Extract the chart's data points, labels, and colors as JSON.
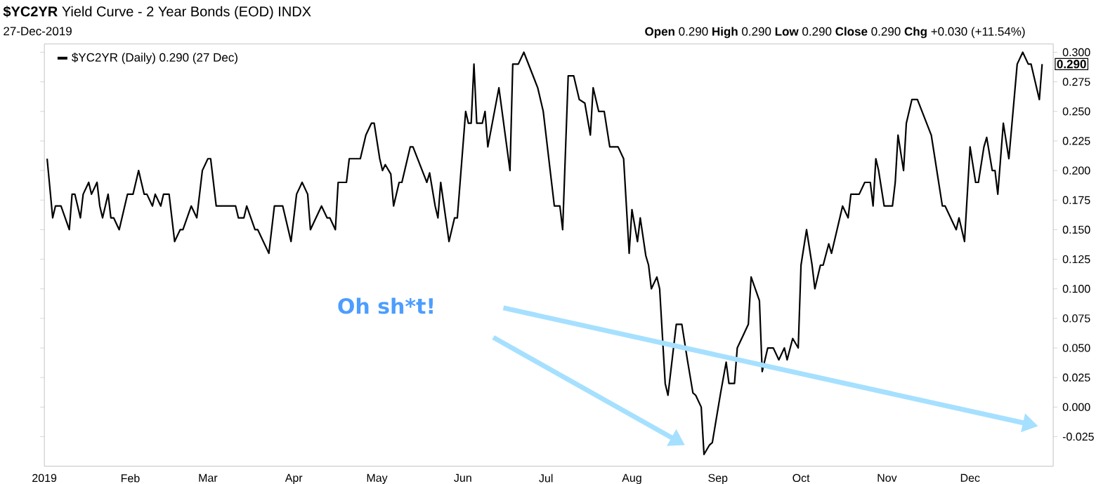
{
  "chart_data": {
    "type": "line",
    "title": "**$YC2YR** Yield Curve - 2 Year Bonds (EOD) INDX",
    "annotations": [
      "27-Dec-2019",
      "**Open** 0.290 **High** 0.290 **Low** 0.290 **Close** 0.290 **Chg** +0.030 (+11.54%)",
      "Oh sh*t!",
      {
        "text": "0.290",
        "x": "2019-12-27",
        "y": 0.29
      }
    ],
    "x": [
      "2019-01-02",
      "2019-01-04",
      "2019-01-05",
      "2019-01-07",
      "2019-01-10",
      "2019-01-11",
      "2019-01-12",
      "2019-01-14",
      "2019-01-15",
      "2019-01-17",
      "2019-01-18",
      "2019-01-20",
      "2019-01-21",
      "2019-01-22",
      "2019-01-24",
      "2019-01-25",
      "2019-01-26",
      "2019-01-28",
      "2019-01-31",
      "2019-02-02",
      "2019-02-04",
      "2019-02-06",
      "2019-02-07",
      "2019-02-09",
      "2019-02-10",
      "2019-02-12",
      "2019-02-13",
      "2019-02-15",
      "2019-02-17",
      "2019-02-19",
      "2019-02-20",
      "2019-02-23",
      "2019-02-25",
      "2019-02-27",
      "2019-03-01",
      "2019-03-02",
      "2019-03-04",
      "2019-03-11",
      "2019-03-12",
      "2019-03-14",
      "2019-03-15",
      "2019-03-18",
      "2019-03-19",
      "2019-03-23",
      "2019-03-25",
      "2019-03-28",
      "2019-03-29",
      "2019-03-31",
      "2019-04-02",
      "2019-04-04",
      "2019-04-06",
      "2019-04-07",
      "2019-04-09",
      "2019-04-11",
      "2019-04-13",
      "2019-04-14",
      "2019-04-16",
      "2019-04-17",
      "2019-04-20",
      "2019-04-21",
      "2019-04-25",
      "2019-04-27",
      "2019-04-29",
      "2019-04-30",
      "2019-05-02",
      "2019-05-03",
      "2019-05-04",
      "2019-05-06",
      "2019-05-07",
      "2019-05-09",
      "2019-05-10",
      "2019-05-13",
      "2019-05-14",
      "2019-05-19",
      "2019-05-20",
      "2019-05-22",
      "2019-05-23",
      "2019-05-24",
      "2019-05-27",
      "2019-05-29",
      "2019-05-30",
      "2019-05-31",
      "2019-06-02",
      "2019-06-03",
      "2019-06-04",
      "2019-06-05",
      "2019-06-06",
      "2019-06-08",
      "2019-06-09",
      "2019-06-10",
      "2019-06-14",
      "2019-06-18",
      "2019-06-19",
      "2019-06-21",
      "2019-06-23",
      "2019-06-28",
      "2019-06-30",
      "2019-07-02",
      "2019-07-04",
      "2019-07-06",
      "2019-07-07",
      "2019-07-09",
      "2019-07-11",
      "2019-07-13",
      "2019-07-15",
      "2019-07-17",
      "2019-07-18",
      "2019-07-20",
      "2019-07-22",
      "2019-07-24",
      "2019-07-27",
      "2019-07-29",
      "2019-07-31",
      "2019-08-01",
      "2019-08-03",
      "2019-08-04",
      "2019-08-06",
      "2019-08-07",
      "2019-08-08",
      "2019-08-10",
      "2019-08-11",
      "2019-08-13",
      "2019-08-14",
      "2019-08-17",
      "2019-08-19",
      "2019-08-21",
      "2019-08-23",
      "2019-08-24",
      "2019-08-26",
      "2019-08-27",
      "2019-08-29",
      "2019-08-30",
      "2019-09-02",
      "2019-09-04",
      "2019-09-05",
      "2019-09-07",
      "2019-09-08",
      "2019-09-10",
      "2019-09-12",
      "2019-09-13",
      "2019-09-16",
      "2019-09-17",
      "2019-09-19",
      "2019-09-21",
      "2019-09-23",
      "2019-09-25",
      "2019-09-26",
      "2019-09-28",
      "2019-09-30",
      "2019-10-01",
      "2019-10-03",
      "2019-10-05",
      "2019-10-06",
      "2019-10-08",
      "2019-10-09",
      "2019-10-11",
      "2019-10-12",
      "2019-10-14",
      "2019-10-16",
      "2019-10-18",
      "2019-10-19",
      "2019-10-22",
      "2019-10-24",
      "2019-10-26",
      "2019-10-27",
      "2019-10-28",
      "2019-10-29",
      "2019-10-31",
      "2019-11-03",
      "2019-11-04",
      "2019-11-05",
      "2019-11-07",
      "2019-11-08",
      "2019-11-10",
      "2019-11-12",
      "2019-11-17",
      "2019-11-21",
      "2019-11-22",
      "2019-11-26",
      "2019-11-27",
      "2019-11-29",
      "2019-12-01",
      "2019-12-03",
      "2019-12-04",
      "2019-12-06",
      "2019-12-07",
      "2019-12-09",
      "2019-12-10",
      "2019-12-11",
      "2019-12-13",
      "2019-12-15",
      "2019-12-18",
      "2019-12-20",
      "2019-12-22",
      "2019-12-23",
      "2019-12-24",
      "2019-12-26",
      "2019-12-27"
    ],
    "series": [
      {
        "name": "$YC2YR (Daily) 0.290 (27 Dec)",
        "color": "#000000",
        "values": [
          0.21,
          0.16,
          0.17,
          0.17,
          0.15,
          0.18,
          0.18,
          0.16,
          0.18,
          0.19,
          0.18,
          0.19,
          0.17,
          0.16,
          0.18,
          0.16,
          0.16,
          0.15,
          0.18,
          0.18,
          0.2,
          0.18,
          0.18,
          0.17,
          0.18,
          0.17,
          0.18,
          0.18,
          0.14,
          0.15,
          0.15,
          0.17,
          0.16,
          0.2,
          0.21,
          0.21,
          0.17,
          0.17,
          0.16,
          0.16,
          0.17,
          0.15,
          0.15,
          0.13,
          0.17,
          0.17,
          0.16,
          0.14,
          0.18,
          0.19,
          0.18,
          0.15,
          0.16,
          0.17,
          0.16,
          0.16,
          0.15,
          0.19,
          0.19,
          0.21,
          0.21,
          0.23,
          0.24,
          0.24,
          0.21,
          0.2,
          0.205,
          0.197,
          0.17,
          0.19,
          0.19,
          0.22,
          0.22,
          0.19,
          0.198,
          0.17,
          0.16,
          0.19,
          0.14,
          0.16,
          0.16,
          0.19,
          0.25,
          0.24,
          0.24,
          0.29,
          0.24,
          0.24,
          0.25,
          0.22,
          0.27,
          0.2,
          0.29,
          0.29,
          0.3,
          0.27,
          0.25,
          0.21,
          0.17,
          0.17,
          0.15,
          0.28,
          0.28,
          0.26,
          0.257,
          0.23,
          0.27,
          0.25,
          0.25,
          0.22,
          0.22,
          0.21,
          0.13,
          0.167,
          0.14,
          0.16,
          0.128,
          0.12,
          0.1,
          0.11,
          0.1,
          0.02,
          0.01,
          0.07,
          0.07,
          0.04,
          0.012,
          0.01,
          0.0,
          -0.04,
          -0.032,
          -0.03,
          0.012,
          0.038,
          0.02,
          0.02,
          0.05,
          0.06,
          0.07,
          0.11,
          0.09,
          0.03,
          0.05,
          0.05,
          0.04,
          0.05,
          0.04,
          0.058,
          0.05,
          0.12,
          0.15,
          0.12,
          0.1,
          0.12,
          0.12,
          0.138,
          0.13,
          0.15,
          0.17,
          0.16,
          0.18,
          0.18,
          0.19,
          0.19,
          0.17,
          0.21,
          0.2,
          0.17,
          0.17,
          0.19,
          0.23,
          0.2,
          0.24,
          0.26,
          0.26,
          0.23,
          0.17,
          0.17,
          0.15,
          0.16,
          0.14,
          0.22,
          0.19,
          0.19,
          0.22,
          0.228,
          0.2,
          0.2,
          0.18,
          0.24,
          0.21,
          0.29,
          0.3,
          0.29,
          0.29,
          0.28,
          0.26,
          0.29
        ]
      }
    ],
    "xlim": [
      "2019-01-01",
      "2019-12-31"
    ],
    "xticks": [
      {
        "value": "2019-01-01",
        "label": "2019"
      },
      {
        "value": "2019-02-01",
        "label": "Feb"
      },
      {
        "value": "2019-03-01",
        "label": "Mar"
      },
      {
        "value": "2019-04-01",
        "label": "Apr"
      },
      {
        "value": "2019-05-01",
        "label": "May"
      },
      {
        "value": "2019-06-01",
        "label": "Jun"
      },
      {
        "value": "2019-07-01",
        "label": "Jul"
      },
      {
        "value": "2019-08-01",
        "label": "Aug"
      },
      {
        "value": "2019-09-01",
        "label": "Sep"
      },
      {
        "value": "2019-10-01",
        "label": "Oct"
      },
      {
        "value": "2019-11-01",
        "label": "Nov"
      },
      {
        "value": "2019-12-01",
        "label": "Dec"
      }
    ],
    "ylim": [
      -0.05,
      0.307
    ],
    "yticks": [
      {
        "value": -0.025,
        "label": "-0.025"
      },
      {
        "value": 0,
        "label": "0.000"
      },
      {
        "value": 0.025,
        "label": "0.025"
      },
      {
        "value": 0.05,
        "label": "0.050"
      },
      {
        "value": 0.075,
        "label": "0.075"
      },
      {
        "value": 0.1,
        "label": "0.100"
      },
      {
        "value": 0.125,
        "label": "0.125"
      },
      {
        "value": 0.15,
        "label": "0.150"
      },
      {
        "value": 0.175,
        "label": "0.175"
      },
      {
        "value": 0.2,
        "label": "0.200"
      },
      {
        "value": 0.225,
        "label": "0.225"
      },
      {
        "value": 0.25,
        "label": "0.250"
      },
      {
        "value": 0.275,
        "label": "0.275"
      },
      {
        "value": 0.3,
        "label": "0.300"
      }
    ],
    "legend": "top left",
    "grid": false,
    "marker": "none",
    "line_style": "solid"
  }
}
